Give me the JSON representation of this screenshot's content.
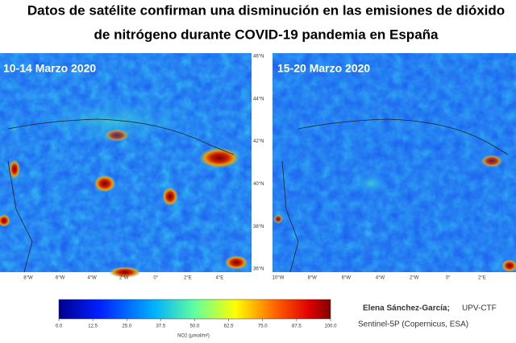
{
  "title": {
    "line1": "Datos de satélite confirman una disminución en las emisiones de dióxido",
    "line2": "de nitrógeno durante COVID-19 pandemia en España"
  },
  "panels": [
    {
      "label": "10-14 Marzo 2020",
      "lon_labels": [
        "8°W",
        "6°W",
        "4°W",
        "2°W",
        "0°",
        "2°E",
        "4°E"
      ]
    },
    {
      "label": "15-20 Marzo 2020",
      "lon_labels": [
        "10°W",
        "8°W",
        "6°W",
        "4°W",
        "2°W",
        "0°",
        "2°E"
      ]
    }
  ],
  "lat_labels": [
    "46°N",
    "44°N",
    "42°N",
    "40°N",
    "38°N",
    "36°N"
  ],
  "colorbar": {
    "ticks": [
      "0.0",
      "12.5",
      "25.0",
      "37.5",
      "50.0",
      "62.5",
      "75.0",
      "87.5",
      "100.0"
    ],
    "label": "NO2 (µmol/m²)"
  },
  "credits": {
    "author": "Elena Sánchez-García;",
    "affiliation": "UPV-CTF",
    "source": "Sentinel-5P (Copernicus, ESA)"
  }
}
